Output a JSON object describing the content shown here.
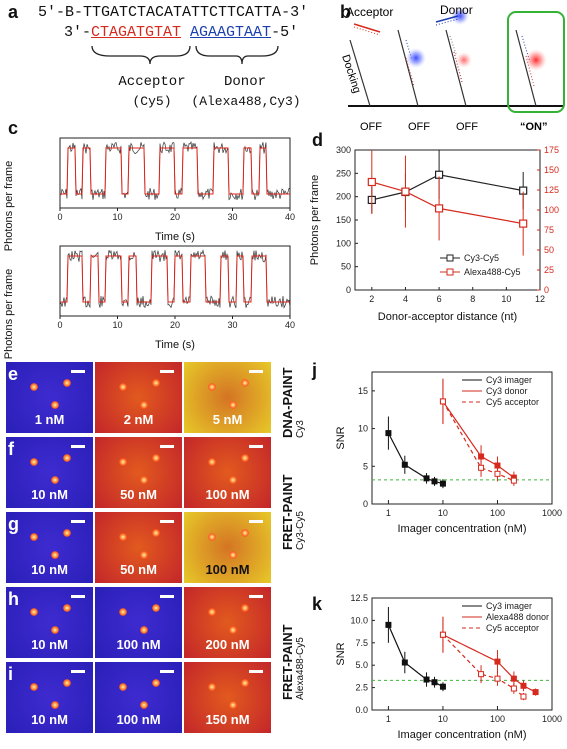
{
  "panels": {
    "a": "a",
    "b": "b",
    "c": "c",
    "d": "d",
    "e": "e",
    "f": "f",
    "g": "g",
    "h": "h",
    "i": "i",
    "j": "j",
    "k": "k"
  },
  "seq": {
    "top_prefix": "5′-B-",
    "top_main": "TTGATCTACATATTCTTCATTA",
    "top_suffix": "-3′",
    "bot_prefix": "3′-",
    "bot_acceptor": "CTAGATGTAT",
    "bot_donor": "AGAAGTAAT",
    "bot_suffix": "-5′",
    "acceptor_label": "Acceptor",
    "acceptor_dye": "(Cy5)",
    "donor_label": "Donor",
    "donor_dye": "(Alexa488,Cy3)"
  },
  "schematic": {
    "acceptor": "Acceptor",
    "donor": "Donor",
    "docking": "Docking",
    "states": [
      "OFF",
      "OFF",
      "OFF",
      "“ON”"
    ]
  },
  "panel_c": {
    "ylabel": "Photons per frame",
    "xlabel": "Time (s)",
    "xticks": [
      "0",
      "10",
      "20",
      "30",
      "40"
    ]
  },
  "chart_data": [
    {
      "type": "line",
      "id": "d",
      "xlabel": "Donor-acceptor distance (nt)",
      "ylabel": "Photons per frame",
      "xlim": [
        1,
        12
      ],
      "ylim_left": [
        0,
        300
      ],
      "ylim_right": [
        0,
        175
      ],
      "xticks": [
        2,
        4,
        6,
        8,
        10,
        12
      ],
      "yticks_left": [
        0,
        50,
        100,
        150,
        200,
        250,
        300
      ],
      "yticks_right": [
        0,
        25,
        50,
        75,
        100,
        125,
        150,
        175
      ],
      "series": [
        {
          "name": "Cy3-Cy5",
          "axis": "left",
          "color": "#222222",
          "x": [
            2,
            4,
            6,
            11
          ],
          "y": [
            193,
            210,
            247,
            213
          ],
          "err": [
            28,
            40,
            52,
            40
          ]
        },
        {
          "name": "Alexa488-Cy5",
          "axis": "right",
          "color": "#d62a1e",
          "x": [
            2,
            4,
            6,
            11
          ],
          "y": [
            135,
            123,
            102,
            83
          ],
          "err": [
            40,
            45,
            40,
            40
          ]
        }
      ]
    },
    {
      "type": "line",
      "id": "j",
      "xlabel": "Imager concentration (nM)",
      "ylabel": "SNR",
      "xscale": "log",
      "xlim": [
        0.5,
        1000
      ],
      "ylim": [
        0,
        17.5
      ],
      "yticks": [
        0,
        5,
        10,
        15
      ],
      "xtick_labels": [
        "1",
        "10",
        "100",
        "1000"
      ],
      "threshold": 3.2,
      "series": [
        {
          "name": "Cy3 imager",
          "color": "#111111",
          "style": "solid",
          "x": [
            1,
            2,
            5,
            7,
            10
          ],
          "y": [
            9.4,
            5.2,
            3.4,
            3.0,
            2.7
          ],
          "err": [
            2.2,
            1.2,
            0.7,
            0.6,
            0.6
          ]
        },
        {
          "name": "Cy3 donor",
          "color": "#d62a1e",
          "style": "solid",
          "x": [
            10,
            50,
            100,
            200
          ],
          "y": [
            13.6,
            6.3,
            5.1,
            3.5
          ],
          "err": [
            3.0,
            1.5,
            1.2,
            0.8
          ]
        },
        {
          "name": "Cy5 acceptor",
          "color": "#d62a1e",
          "style": "dashed",
          "x": [
            10,
            50,
            100,
            200
          ],
          "y": [
            13.6,
            4.8,
            4.0,
            3.1
          ],
          "err": [
            3.0,
            1.2,
            1.0,
            0.7
          ]
        }
      ]
    },
    {
      "type": "line",
      "id": "k",
      "xlabel": "Imager concentration (nM)",
      "ylabel": "SNR",
      "xscale": "log",
      "xlim": [
        0.5,
        1000
      ],
      "ylim": [
        0,
        12.5
      ],
      "yticks": [
        0.0,
        2.5,
        5.0,
        7.5,
        10.0,
        12.5
      ],
      "xtick_labels": [
        "1",
        "10",
        "100",
        "1000"
      ],
      "threshold": 3.3,
      "series": [
        {
          "name": "Cy3 imager",
          "color": "#111111",
          "style": "solid",
          "x": [
            1,
            2,
            5,
            7,
            10
          ],
          "y": [
            9.5,
            5.3,
            3.4,
            3.1,
            2.6
          ],
          "err": [
            2.0,
            1.2,
            0.8,
            0.6,
            0.5
          ]
        },
        {
          "name": "Alexa488 donor",
          "color": "#d62a1e",
          "style": "solid",
          "x": [
            10,
            100,
            200,
            300,
            500
          ],
          "y": [
            8.4,
            5.4,
            3.5,
            2.7,
            2.0
          ],
          "err": [
            2.0,
            1.3,
            0.8,
            0.6,
            0.4
          ]
        },
        {
          "name": "Cy5 acceptor",
          "color": "#d62a1e",
          "style": "dashed",
          "x": [
            10,
            50,
            100,
            200,
            300
          ],
          "y": [
            8.4,
            4.0,
            3.5,
            2.4,
            1.5
          ],
          "err": [
            2.0,
            1.0,
            0.8,
            0.6,
            0.4
          ]
        }
      ]
    }
  ],
  "micro": {
    "rows": [
      {
        "id": "e",
        "labels": [
          "1 nM",
          "2 nM",
          "5 nM"
        ]
      },
      {
        "id": "f",
        "labels": [
          "10 nM",
          "50 nM",
          "100 nM"
        ]
      },
      {
        "id": "g",
        "labels": [
          "10 nM",
          "50 nM",
          "100 nM"
        ]
      },
      {
        "id": "h",
        "labels": [
          "10 nM",
          "100 nM",
          "200 nM"
        ]
      },
      {
        "id": "i",
        "labels": [
          "10 nM",
          "100 nM",
          "150 nM"
        ]
      }
    ],
    "groups": [
      {
        "title": "DNA-PAINT",
        "sub": "Cy3"
      },
      {
        "title": "FRET-PAINT",
        "sub": "Cy3-Cy5"
      },
      {
        "title": "FRET-PAINT",
        "sub": "Alexa488-Cy5"
      }
    ]
  }
}
